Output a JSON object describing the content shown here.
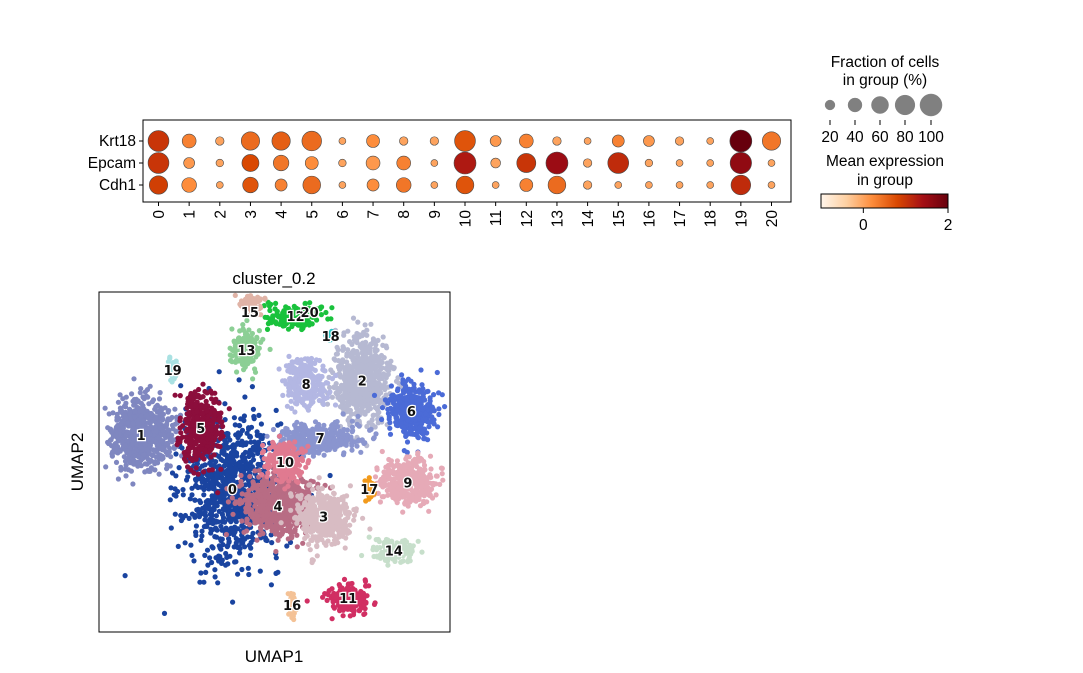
{
  "colors": {
    "dot_edge": "#4a4a4a",
    "legend_dot": "#808080",
    "cmap": [
      "#fff5eb",
      "#fdd0a2",
      "#fd8d3c",
      "#d94801",
      "#a50f15",
      "#67000d"
    ]
  },
  "chart_data": [
    {
      "type": "dotplot",
      "genes": [
        "Krt18",
        "Epcam",
        "Cdh1"
      ],
      "categories": [
        "0",
        "1",
        "2",
        "3",
        "4",
        "5",
        "6",
        "7",
        "8",
        "9",
        "10",
        "11",
        "12",
        "13",
        "14",
        "15",
        "16",
        "17",
        "18",
        "19",
        "20"
      ],
      "fraction": [
        [
          90,
          40,
          15,
          70,
          70,
          80,
          10,
          35,
          15,
          15,
          90,
          25,
          40,
          15,
          10,
          30,
          25,
          15,
          10,
          100,
          70
        ],
        [
          90,
          25,
          12,
          60,
          50,
          35,
          12,
          40,
          40,
          10,
          100,
          20,
          75,
          100,
          15,
          90,
          12,
          10,
          10,
          95,
          10
        ],
        [
          70,
          45,
          10,
          50,
          30,
          65,
          10,
          30,
          45,
          10,
          65,
          10,
          35,
          65,
          15,
          10,
          10,
          10,
          10,
          80,
          10
        ]
      ],
      "expression": [
        [
          1.0,
          0.3,
          0.0,
          0.5,
          0.6,
          0.5,
          0.0,
          0.2,
          0.0,
          0.0,
          0.7,
          0.1,
          0.3,
          0.0,
          0.0,
          0.3,
          0.1,
          0.0,
          0.0,
          2.0,
          0.4
        ],
        [
          1.0,
          0.1,
          0.0,
          0.8,
          0.4,
          0.2,
          0.0,
          0.1,
          0.3,
          0.0,
          1.3,
          0.0,
          1.0,
          1.5,
          0.0,
          1.1,
          0.0,
          0.0,
          0.0,
          1.6,
          0.0
        ],
        [
          0.9,
          0.2,
          0.0,
          0.7,
          0.3,
          0.5,
          0.0,
          0.2,
          0.4,
          0.0,
          0.7,
          0.0,
          0.3,
          0.5,
          0.0,
          0.0,
          0.0,
          0.0,
          0.0,
          1.1,
          0.0
        ]
      ],
      "size_legend": {
        "title_line1": "Fraction of cells",
        "title_line2": "in group (%)",
        "values": [
          20,
          40,
          60,
          80,
          100
        ],
        "labels": [
          "20",
          "40",
          "60",
          "80",
          "100"
        ]
      },
      "color_legend": {
        "title_line1": "Mean expression",
        "title_line2": "in group",
        "range": [
          -1,
          2
        ],
        "ticks": [
          0,
          2
        ],
        "tick_labels": [
          "0",
          "2"
        ]
      }
    },
    {
      "type": "scatter",
      "title": "cluster_0.2",
      "xlabel": "UMAP1",
      "ylabel": "UMAP2",
      "clusters": [
        {
          "label": "0",
          "center": [
            0.38,
            0.42
          ],
          "spread": [
            0.13,
            0.19
          ],
          "color": "#1a44a0"
        },
        {
          "label": "1",
          "center": [
            0.12,
            0.58
          ],
          "spread": [
            0.08,
            0.09
          ],
          "color": "#7f87c0"
        },
        {
          "label": "2",
          "center": [
            0.75,
            0.74
          ],
          "spread": [
            0.07,
            0.11
          ],
          "color": "#b6b9d2"
        },
        {
          "label": "3",
          "center": [
            0.64,
            0.34
          ],
          "spread": [
            0.07,
            0.07
          ],
          "color": "#d8bcc3"
        },
        {
          "label": "4",
          "center": [
            0.51,
            0.37
          ],
          "spread": [
            0.09,
            0.08
          ],
          "color": "#b86c84"
        },
        {
          "label": "5",
          "center": [
            0.29,
            0.6
          ],
          "spread": [
            0.05,
            0.09
          ],
          "color": "#8c0e3c"
        },
        {
          "label": "6",
          "center": [
            0.89,
            0.65
          ],
          "spread": [
            0.06,
            0.07
          ],
          "color": "#4b6bd7"
        },
        {
          "label": "7",
          "center": [
            0.63,
            0.57
          ],
          "spread": [
            0.1,
            0.04
          ],
          "color": "#8a95cf"
        },
        {
          "label": "8",
          "center": [
            0.59,
            0.73
          ],
          "spread": [
            0.05,
            0.06
          ],
          "color": "#b3b7e3"
        },
        {
          "label": "9",
          "center": [
            0.88,
            0.44
          ],
          "spread": [
            0.07,
            0.06
          ],
          "color": "#e6aab7"
        },
        {
          "label": "10",
          "center": [
            0.53,
            0.5
          ],
          "spread": [
            0.05,
            0.05
          ],
          "color": "#e07a90"
        },
        {
          "label": "11",
          "center": [
            0.71,
            0.1
          ],
          "spread": [
            0.05,
            0.04
          ],
          "color": "#d12f63"
        },
        {
          "label": "12",
          "center": [
            0.56,
            0.93
          ],
          "spread": [
            0.07,
            0.03
          ],
          "color": "#19c23c"
        },
        {
          "label": "13",
          "center": [
            0.42,
            0.83
          ],
          "spread": [
            0.04,
            0.05
          ],
          "color": "#8ccf95"
        },
        {
          "label": "14",
          "center": [
            0.84,
            0.24
          ],
          "spread": [
            0.05,
            0.03
          ],
          "color": "#c7dfcb"
        },
        {
          "label": "15",
          "center": [
            0.43,
            0.97
          ],
          "spread": [
            0.03,
            0.03
          ],
          "color": "#e0b3a6"
        },
        {
          "label": "16",
          "center": [
            0.55,
            0.08
          ],
          "spread": [
            0.01,
            0.03
          ],
          "color": "#f4c296"
        },
        {
          "label": "17",
          "center": [
            0.77,
            0.42
          ],
          "spread": [
            0.01,
            0.03
          ],
          "color": "#f29a1c"
        },
        {
          "label": "18",
          "center": [
            0.66,
            0.87
          ],
          "spread": [
            0.01,
            0.01
          ],
          "color": "#2bc6c6"
        },
        {
          "label": "19",
          "center": [
            0.21,
            0.77
          ],
          "spread": [
            0.01,
            0.03
          ],
          "color": "#a9e1e2"
        },
        {
          "label": "20",
          "center": [
            0.6,
            1.0
          ],
          "spread": [
            0.0,
            0.0
          ],
          "color": "#ffffff"
        }
      ]
    }
  ]
}
